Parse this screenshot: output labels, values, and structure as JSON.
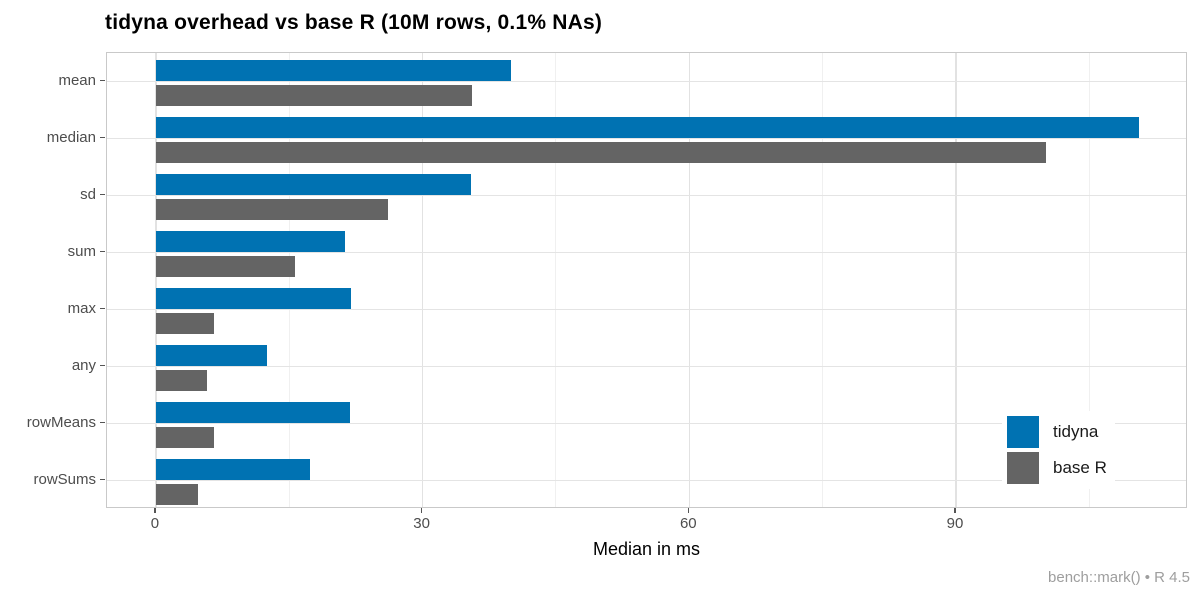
{
  "chart_data": {
    "type": "bar",
    "orientation": "horizontal",
    "title": "tidyna overhead vs base R (10M rows, 0.1% NAs)",
    "xlabel": "Median in ms",
    "caption": "bench::mark() • R 4.5",
    "categories": [
      "mean",
      "median",
      "sd",
      "sum",
      "max",
      "any",
      "rowMeans",
      "rowSums"
    ],
    "series": [
      {
        "name": "tidyna",
        "color": "#0072B2",
        "values": [
          40.0,
          110.6,
          35.4,
          21.3,
          21.9,
          12.5,
          21.8,
          17.3
        ]
      },
      {
        "name": "base R",
        "color": "#646464",
        "values": [
          35.6,
          100.1,
          26.1,
          15.7,
          6.5,
          5.7,
          6.5,
          4.7
        ]
      }
    ],
    "x_major_ticks": [
      0,
      30,
      60,
      90
    ],
    "x_minor_ticks": [
      15,
      45,
      75,
      105
    ],
    "xlim": [
      -5.5,
      116.1
    ],
    "grid": true,
    "legend_position": "inside-right",
    "panel_background": "#ffffff",
    "major_grid_color": "#e2e2e2",
    "minor_grid_color": "#f0f0f0"
  }
}
